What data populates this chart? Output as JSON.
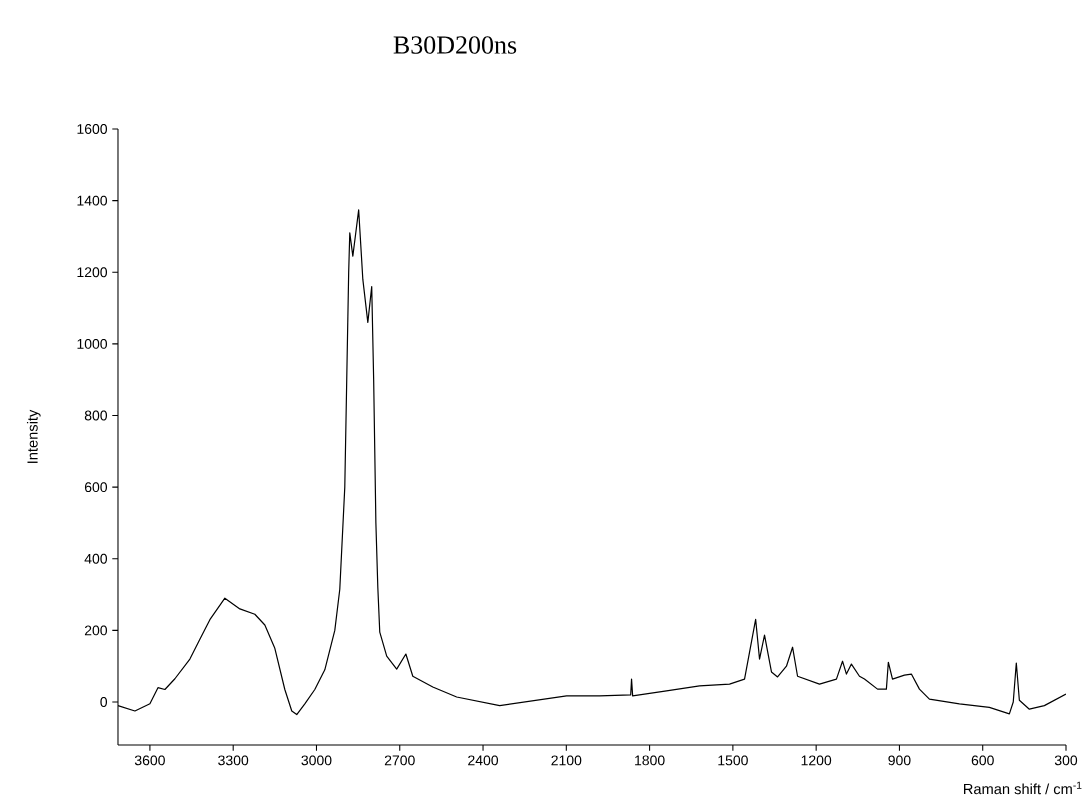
{
  "chart_data": {
    "type": "line",
    "title": "B30D200ns",
    "xlabel": "Raman shift / cm$^{-1}$",
    "ylabel": "Intensity",
    "xlim": [
      3715,
      300
    ],
    "ylim": [
      -120,
      1600
    ],
    "xticks": [
      3600,
      3300,
      3000,
      2700,
      2400,
      2100,
      1800,
      1500,
      1200,
      900,
      600,
      300
    ],
    "yticks": [
      0,
      200,
      400,
      600,
      800,
      1000,
      1200,
      1400,
      1600
    ],
    "grid": false,
    "marker": "none",
    "line_style": "solid",
    "series": [
      {
        "color": "#000000",
        "x": [
          3715,
          3654,
          3600,
          3571,
          3546,
          3510,
          3456,
          3420,
          3384,
          3348,
          3330,
          3276,
          3222,
          3186,
          3150,
          3114,
          3089,
          3071,
          3042,
          3006,
          2970,
          2934,
          2916,
          2898,
          2891,
          2884,
          2880,
          2869,
          2848,
          2833,
          2815,
          2801,
          2794,
          2786,
          2779,
          2772,
          2747,
          2711,
          2678,
          2653,
          2581,
          2495,
          2340,
          2099,
          1980,
          1868,
          1865,
          1861,
          1739,
          1620,
          1512,
          1458,
          1418,
          1404,
          1386,
          1361,
          1339,
          1307,
          1285,
          1267,
          1188,
          1127,
          1105,
          1091,
          1073,
          1044,
          1026,
          979,
          947,
          940,
          925,
          882,
          857,
          828,
          792,
          684,
          576,
          504,
          490,
          479,
          468,
          432,
          378,
          300
        ],
        "values": [
          -10,
          -25,
          -5,
          40,
          35,
          65,
          120,
          175,
          230,
          270,
          290,
          260,
          245,
          215,
          150,
          35,
          -25,
          -35,
          -5,
          35,
          90,
          200,
          315,
          600,
          900,
          1200,
          1310,
          1245,
          1374,
          1180,
          1060,
          1160,
          900,
          500,
          320,
          195,
          128,
          92,
          134,
          72,
          42,
          14,
          -10,
          17,
          17,
          20,
          64,
          17,
          31,
          45,
          50,
          64,
          231,
          120,
          187,
          84,
          70,
          100,
          153,
          72,
          50,
          64,
          114,
          78,
          106,
          72,
          64,
          36,
          36,
          111,
          64,
          75,
          78,
          36,
          8,
          -5,
          -15,
          -33,
          0,
          109,
          5,
          -20,
          -10,
          22
        ]
      }
    ]
  }
}
